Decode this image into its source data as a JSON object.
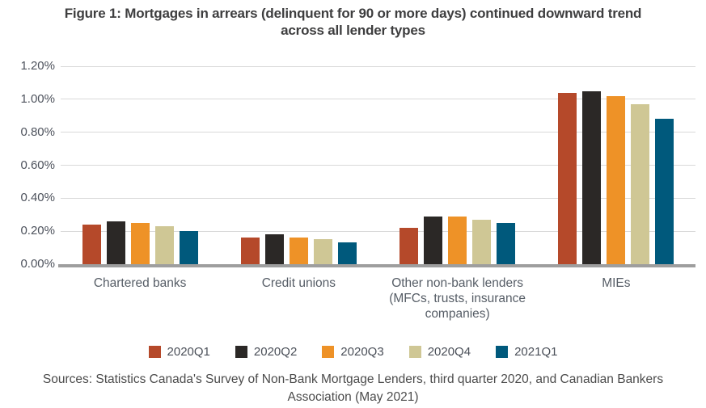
{
  "title": {
    "line1": "Figure 1: Mortgages in arrears (delinquent for 90 or more days) continued downward trend",
    "line2": "across all lender types"
  },
  "sources": {
    "line1": "Sources: Statistics Canada's Survey of Non-Bank Mortgage Lenders, third quarter 2020, and Canadian Bankers",
    "line2": "Association (May 2021)"
  },
  "chart_data": {
    "type": "bar",
    "title": "Figure 1: Mortgages in arrears (delinquent for 90 or more days) continued downward trend across all lender types",
    "categories": [
      "Chartered banks",
      "Credit unions",
      "Other non-bank lenders (MFCs, trusts, insurance companies)",
      "MIEs"
    ],
    "series": [
      {
        "name": "2020Q1",
        "color": "#b5492a",
        "values": [
          0.24,
          0.16,
          0.22,
          1.04
        ]
      },
      {
        "name": "2020Q2",
        "color": "#2b2826",
        "values": [
          0.26,
          0.18,
          0.29,
          1.05
        ]
      },
      {
        "name": "2020Q3",
        "color": "#ee9227",
        "values": [
          0.25,
          0.16,
          0.29,
          1.02
        ]
      },
      {
        "name": "2020Q4",
        "color": "#cfc795",
        "values": [
          0.23,
          0.15,
          0.27,
          0.97
        ]
      },
      {
        "name": "2021Q1",
        "color": "#00597c",
        "values": [
          0.2,
          0.13,
          0.25,
          0.88
        ]
      }
    ],
    "xlabel": "",
    "ylabel": "",
    "ytick_labels": [
      "1.20%",
      "1.00%",
      "0.80%",
      "0.60%",
      "0.40%",
      "0.20%",
      "0.00%"
    ],
    "ylim": [
      0,
      1.2
    ],
    "grid": true,
    "legend_position": "bottom"
  }
}
